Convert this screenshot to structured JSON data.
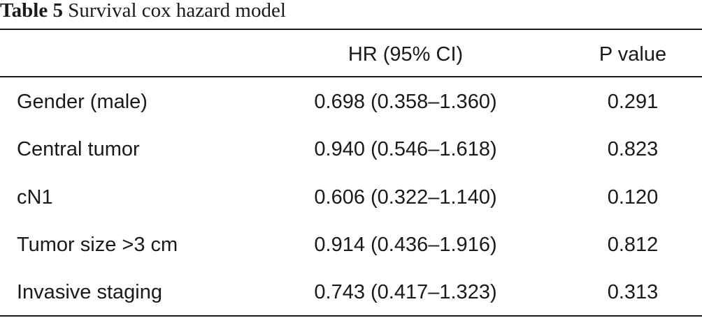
{
  "table": {
    "number": "Table 5",
    "title": "Survival cox hazard model",
    "columns": [
      "",
      "HR (95% CI)",
      "P value"
    ],
    "rows": [
      {
        "label": "Gender (male)",
        "hr": "0.698 (0.358–1.360)",
        "p": "0.291"
      },
      {
        "label": "Central tumor",
        "hr": "0.940 (0.546–1.618)",
        "p": "0.823"
      },
      {
        "label": "cN1",
        "hr": "0.606 (0.322–1.140)",
        "p": "0.120"
      },
      {
        "label": "Tumor size >3 cm",
        "hr": "0.914 (0.436–1.916)",
        "p": "0.812"
      },
      {
        "label": "Invasive staging",
        "hr": "0.743 (0.417–1.323)",
        "p": "0.313"
      }
    ]
  }
}
